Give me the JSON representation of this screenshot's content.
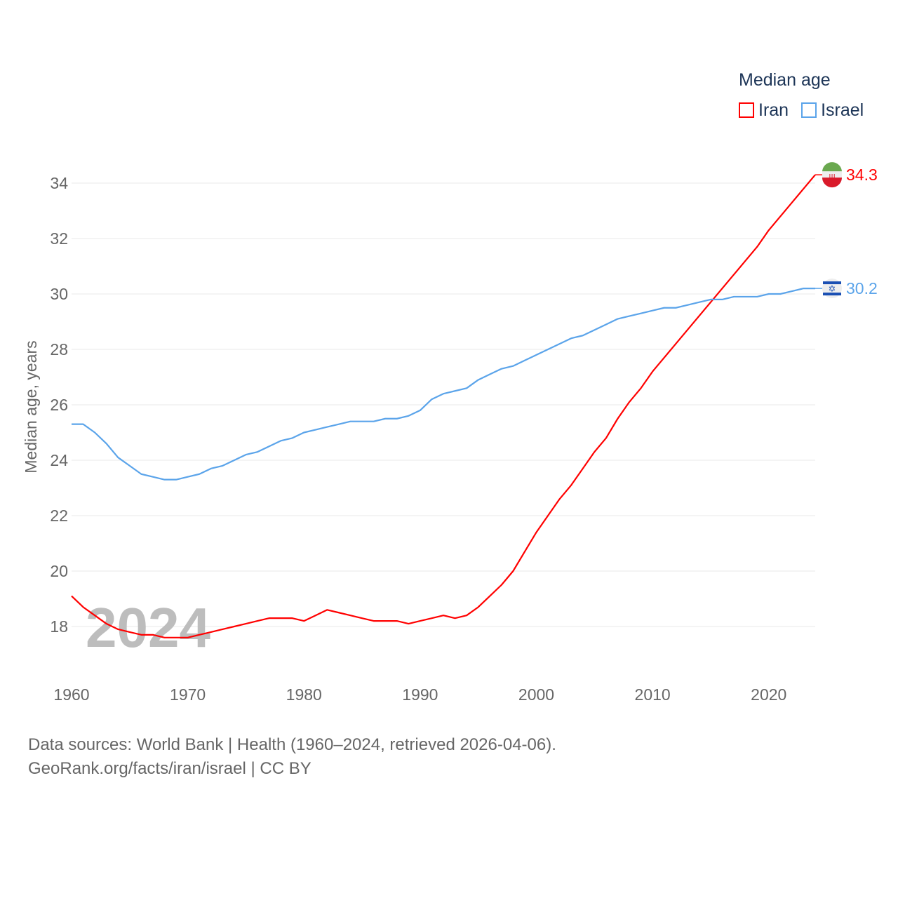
{
  "chart_data": {
    "type": "line",
    "ylabel": "Median age, years",
    "xlabel": "",
    "xlim": [
      1960,
      2024
    ],
    "ylim": [
      17,
      35
    ],
    "yticks": [
      18,
      20,
      22,
      24,
      26,
      28,
      30,
      32,
      34
    ],
    "xticks": [
      1960,
      1970,
      1980,
      1990,
      2000,
      2010,
      2020
    ],
    "grid": true,
    "legend_title": "Median age",
    "legend_position": "top-right",
    "year_watermark": "2024",
    "x": [
      1960,
      1961,
      1962,
      1963,
      1964,
      1965,
      1966,
      1967,
      1968,
      1969,
      1970,
      1971,
      1972,
      1973,
      1974,
      1975,
      1976,
      1977,
      1978,
      1979,
      1980,
      1981,
      1982,
      1983,
      1984,
      1985,
      1986,
      1987,
      1988,
      1989,
      1990,
      1991,
      1992,
      1993,
      1994,
      1995,
      1996,
      1997,
      1998,
      1999,
      2000,
      2001,
      2002,
      2003,
      2004,
      2005,
      2006,
      2007,
      2008,
      2009,
      2010,
      2011,
      2012,
      2013,
      2014,
      2015,
      2016,
      2017,
      2018,
      2019,
      2020,
      2021,
      2022,
      2023,
      2024
    ],
    "series": [
      {
        "name": "Iran",
        "color": "#ff0000",
        "end_label": "34.3",
        "values": [
          19.1,
          18.7,
          18.4,
          18.1,
          17.9,
          17.8,
          17.7,
          17.7,
          17.6,
          17.6,
          17.6,
          17.7,
          17.8,
          17.9,
          18.0,
          18.1,
          18.2,
          18.3,
          18.3,
          18.3,
          18.2,
          18.4,
          18.6,
          18.5,
          18.4,
          18.3,
          18.2,
          18.2,
          18.2,
          18.1,
          18.2,
          18.3,
          18.4,
          18.3,
          18.4,
          18.7,
          19.1,
          19.5,
          20.0,
          20.7,
          21.4,
          22.0,
          22.6,
          23.1,
          23.7,
          24.3,
          24.8,
          25.5,
          26.1,
          26.6,
          27.2,
          27.7,
          28.2,
          28.7,
          29.2,
          29.7,
          30.2,
          30.7,
          31.2,
          31.7,
          32.3,
          32.8,
          33.3,
          33.8,
          34.3
        ]
      },
      {
        "name": "Israel",
        "color": "#5ba4ea",
        "end_label": "30.2",
        "values": [
          25.3,
          25.3,
          25.0,
          24.6,
          24.1,
          23.8,
          23.5,
          23.4,
          23.3,
          23.3,
          23.4,
          23.5,
          23.7,
          23.8,
          24.0,
          24.2,
          24.3,
          24.5,
          24.7,
          24.8,
          25.0,
          25.1,
          25.2,
          25.3,
          25.4,
          25.4,
          25.4,
          25.5,
          25.5,
          25.6,
          25.8,
          26.2,
          26.4,
          26.5,
          26.6,
          26.9,
          27.1,
          27.3,
          27.4,
          27.6,
          27.8,
          28.0,
          28.2,
          28.4,
          28.5,
          28.7,
          28.9,
          29.1,
          29.2,
          29.3,
          29.4,
          29.5,
          29.5,
          29.6,
          29.7,
          29.8,
          29.8,
          29.9,
          29.9,
          29.9,
          30.0,
          30.0,
          30.1,
          30.2,
          30.2
        ]
      }
    ]
  },
  "footer": {
    "line1": "Data sources: World Bank | Health (1960–2024, retrieved 2026-04-06).",
    "line2": "GeoRank.org/facts/iran/israel | CC BY"
  }
}
